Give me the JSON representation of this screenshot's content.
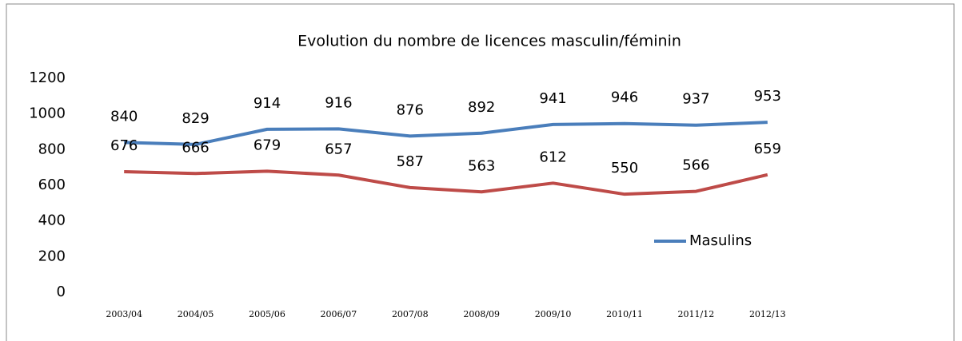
{
  "chart_data": {
    "type": "line",
    "title": "Evolution du nombre de licences masculin/féminin",
    "categories": [
      "2003/04",
      "2004/05",
      "2005/06",
      "2006/07",
      "2007/08",
      "2008/09",
      "2009/10",
      "2010/11",
      "2011/12",
      "2012/13"
    ],
    "series": [
      {
        "name": "Masulins",
        "color": "#4a7ebb",
        "values": [
          840,
          829,
          914,
          916,
          876,
          892,
          941,
          946,
          937,
          953
        ]
      },
      {
        "color": "#be4b48",
        "values": [
          676,
          666,
          679,
          657,
          587,
          563,
          612,
          550,
          566,
          659
        ]
      }
    ],
    "ylim": [
      0,
      1200
    ],
    "yticks": [
      0,
      200,
      400,
      600,
      800,
      1000,
      1200
    ],
    "grid": false,
    "legend": "right"
  }
}
